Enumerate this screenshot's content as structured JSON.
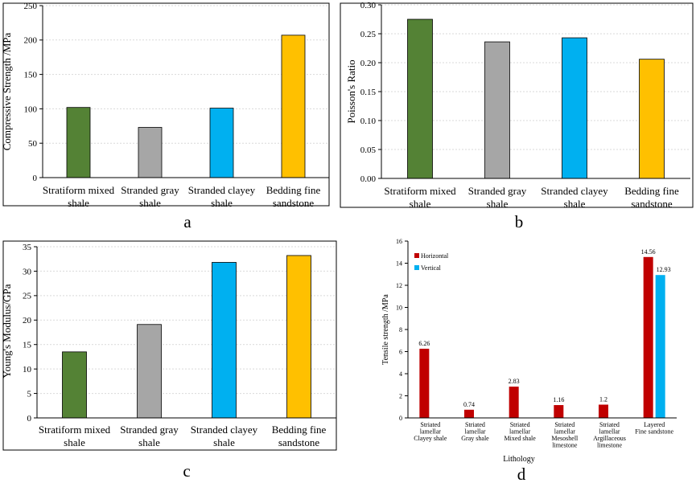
{
  "chart_data": [
    {
      "type": "bar",
      "panel_label": "a",
      "ylabel": "Compressive Strength /MPa",
      "ylim": [
        0,
        250
      ],
      "yticks": [
        "0",
        "50",
        "100",
        "150",
        "200",
        "250"
      ],
      "categories": [
        [
          "Stratiform mixed",
          "shale"
        ],
        [
          "Stranded gray",
          "shale"
        ],
        [
          "Stranded clayey",
          "shale"
        ],
        [
          "Bedding fine",
          "sandstone"
        ]
      ],
      "values": [
        102,
        73,
        101,
        207
      ],
      "colors": [
        "#548235",
        "#a6a6a6",
        "#00b0f0",
        "#ffc000"
      ]
    },
    {
      "type": "bar",
      "panel_label": "b",
      "ylabel": "Poisson's Ratio",
      "ylim": [
        0,
        0.3
      ],
      "yticks": [
        "0.00",
        "0.05",
        "0.10",
        "0.15",
        "0.20",
        "0.25",
        "0.30"
      ],
      "categories": [
        [
          "Stratiform mixed",
          "shale"
        ],
        [
          "Stranded gray",
          "shale"
        ],
        [
          "Stranded clayey",
          "shale"
        ],
        [
          "Bedding fine",
          "sandstone"
        ]
      ],
      "values": [
        0.275,
        0.236,
        0.243,
        0.206
      ],
      "colors": [
        "#548235",
        "#a6a6a6",
        "#00b0f0",
        "#ffc000"
      ]
    },
    {
      "type": "bar",
      "panel_label": "c",
      "ylabel": "Young's Modulus/GPa",
      "ylim": [
        0,
        35
      ],
      "yticks": [
        "0",
        "5",
        "10",
        "15",
        "20",
        "25",
        "30",
        "35"
      ],
      "categories": [
        [
          "Stratiform mixed",
          "shale"
        ],
        [
          "Stranded gray",
          "shale"
        ],
        [
          "Stranded clayey",
          "shale"
        ],
        [
          "Bedding fine",
          "sandstone"
        ]
      ],
      "values": [
        13.5,
        19.1,
        31.8,
        33.2
      ],
      "colors": [
        "#548235",
        "#a6a6a6",
        "#00b0f0",
        "#ffc000"
      ]
    },
    {
      "type": "bar",
      "panel_label": "d",
      "ylabel": "Tensile strength  /MPa",
      "xlabel": "Lithology",
      "ylim": [
        0,
        16
      ],
      "yticks": [
        "0",
        "2",
        "4",
        "6",
        "8",
        "10",
        "12",
        "14",
        "16"
      ],
      "categories": [
        [
          "Striated",
          "lamellar",
          "Clayey shale"
        ],
        [
          "Striated",
          "lamellar",
          "Gray shale"
        ],
        [
          "Striated",
          "lamellar",
          "Mixed shale"
        ],
        [
          "Striated",
          "lamellar",
          "Mesoshell",
          "limestone"
        ],
        [
          "Striated",
          "lamellar",
          "Argillaceous",
          "limestone"
        ],
        [
          "Layered",
          "Fine sandstone"
        ]
      ],
      "series": [
        {
          "name": "Horizontal",
          "color": "#c00000",
          "values": [
            6.26,
            0.74,
            2.83,
            1.16,
            1.2,
            14.56
          ],
          "labels": [
            "6.26",
            "0.74",
            "2.83",
            "1.16",
            "1.2",
            "14.56"
          ]
        },
        {
          "name": "Vertical",
          "color": "#00b0f0",
          "values": [
            null,
            null,
            null,
            null,
            null,
            12.93
          ],
          "labels": [
            "",
            "",
            "",
            "",
            "",
            "12.93"
          ]
        }
      ],
      "legend": "top-left"
    }
  ]
}
